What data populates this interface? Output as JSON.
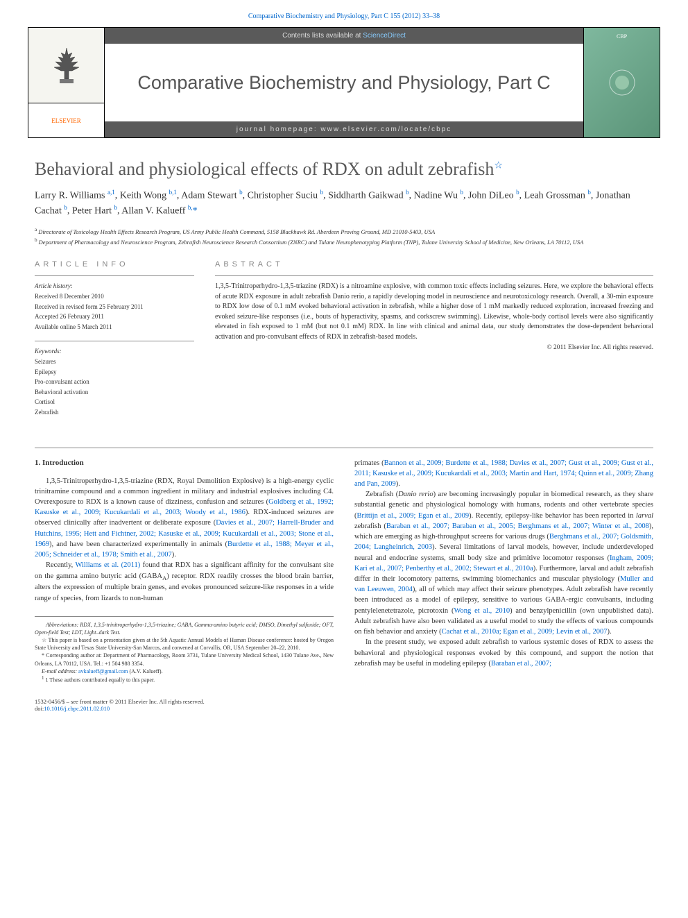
{
  "top_link": {
    "journal": "Comparative Biochemistry and Physiology, Part C 155 (2012) 33–38"
  },
  "banner": {
    "contents_line_prefix": "Contents lists available at ",
    "contents_line_link": "ScienceDirect",
    "journal_title": "Comparative Biochemistry and Physiology, Part C",
    "homepage_prefix": "journal homepage: ",
    "homepage_url": "www.elsevier.com/locate/cbpc",
    "publisher": "ELSEVIER",
    "cover_abbr": "CBP"
  },
  "article": {
    "title": "Behavioral and physiological effects of RDX on adult zebrafish",
    "title_star": "☆",
    "authors_html": "Larry R. Williams <sup>a,1</sup>, Keith Wong <sup>b,1</sup>, Adam Stewart <sup>b</sup>, Christopher Suciu <sup>b</sup>, Siddharth Gaikwad <sup>b</sup>, Nadine Wu <sup>b</sup>, John DiLeo <sup>b</sup>, Leah Grossman <sup>b</sup>, Jonathan Cachat <sup>b</sup>, Peter Hart <sup>b</sup>, Allan V. Kalueff <sup>b,</sup><span class='ast'>*</span>",
    "affiliations": {
      "a": "Directorate of Toxicology Health Effects Research Program, US Army Public Health Command, 5158 Blackhawk Rd. Aberdeen Proving Ground, MD 21010-5403, USA",
      "b": "Department of Pharmacology and Neuroscience Program, Zebrafish Neuroscience Research Consortium (ZNRC) and Tulane Neurophenotyping Platform (TNP), Tulane University School of Medicine, New Orleans, LA 70112, USA"
    }
  },
  "info": {
    "heading_article": "article info",
    "history_label": "Article history:",
    "history_lines": [
      "Received 8 December 2010",
      "Received in revised form 25 February 2011",
      "Accepted 26 February 2011",
      "Available online 5 March 2011"
    ],
    "keywords_label": "Keywords:",
    "keywords": [
      "Seizures",
      "Epilepsy",
      "Pro-convulsant action",
      "Behavioral activation",
      "Cortisol",
      "Zebrafish"
    ]
  },
  "abstract": {
    "heading": "abstract",
    "body": "1,3,5-Trinitroperhydro-1,3,5-triazine (RDX) is a nitroamine explosive, with common toxic effects including seizures. Here, we explore the behavioral effects of acute RDX exposure in adult zebrafish Danio rerio, a rapidly developing model in neuroscience and neurotoxicology research. Overall, a 30-min exposure to RDX low dose of 0.1 mM evoked behavioral activation in zebrafish, while a higher dose of 1 mM markedly reduced exploration, increased freezing and evoked seizure-like responses (i.e., bouts of hyperactivity, spasms, and corkscrew swimming). Likewise, whole-body cortisol levels were also significantly elevated in fish exposed to 1 mM (but not 0.1 mM) RDX. In line with clinical and animal data, our study demonstrates the dose-dependent behavioral activation and pro-convulsant effects of RDX in zebrafish-based models.",
    "copyright": "© 2011 Elsevier Inc. All rights reserved."
  },
  "body": {
    "intro_heading": "1. Introduction",
    "col1": [
      "1,3,5-Trinitroperhydro-1,3,5-triazine (RDX, Royal Demolition Explosive) is a high-energy cyclic trinitramine compound and a common ingredient in military and industrial explosives including C4. Overexposure to RDX is a known cause of dizziness, confusion and seizures (<span class='ref'>Goldberg et al., 1992; Kasuske et al., 2009; Kucukardali et al., 2003; Woody et al., 1986</span>). RDX-induced seizures are observed clinically after inadvertent or deliberate exposure (<span class='ref'>Davies et al., 2007; Harrell-Bruder and Hutchins, 1995; Hett and Fichtner, 2002; Kasuske et al., 2009; Kucukardali et al., 2003; Stone et al., 1969</span>), and have been characterized experimentally in animals (<span class='ref'>Burdette et al., 1988; Meyer et al., 2005; Schneider et al., 1978; Smith et al., 2007</span>).",
      "Recently, <span class='ref'>Williams et al. (2011)</span> found that RDX has a significant affinity for the convulsant site on the gamma amino butyric acid (GABA<sub>A</sub>) receptor. RDX readily crosses the blood brain barrier, alters the expression of multiple brain genes, and evokes pronounced seizure-like responses in a wide range of species, from lizards to non-human"
    ],
    "col2": [
      "primates (<span class='ref'>Bannon et al., 2009; Burdette et al., 1988; Davies et al., 2007; Gust et al., 2009; Gust et al., 2011; Kasuske et al., 2009; Kucukardali et al., 2003; Martin and Hart, 1974; Quinn et al., 2009; Zhang and Pan, 2009</span>).",
      "Zebrafish (<em>Danio rerio</em>) are becoming increasingly popular in biomedical research, as they share substantial genetic and physiological homology with humans, rodents and other vertebrate species (<span class='ref'>Brittijn et al., 2009; Egan et al., 2009</span>). Recently, epilepsy-like behavior has been reported in <em>larval</em> zebrafish (<span class='ref'>Baraban et al., 2007; Baraban et al., 2005; Berghmans et al., 2007; Winter et al., 2008</span>), which are emerging as high-throughput screens for various drugs (<span class='ref'>Berghmans et al., 2007; Goldsmith, 2004; Langheinrich, 2003</span>). Several limitations of larval models, however, include underdeveloped neural and endocrine systems, small body size and primitive locomotor responses (<span class='ref'>Ingham, 2009; Kari et al., 2007; Penberthy et al., 2002; Stewart et al., 2010a</span>). Furthermore, larval and adult zebrafish differ in their locomotory patterns, swimming biomechanics and muscular physiology (<span class='ref'>Muller and van Leeuwen, 2004</span>), all of which may affect their seizure phenotypes. Adult zebrafish have recently been introduced as a model of epilepsy, sensitive to various GABA-ergic convulsants, including pentylelenetetrazole, picrotoxin (<span class='ref'>Wong et al., 2010</span>) and benzylpenicillin (own unpublished data). Adult zebrafish have also been validated as a useful model to study the effects of various compounds on fish behavior and anxiety (<span class='ref'>Cachat et al., 2010a; Egan et al., 2009; Levin et al., 2007</span>).",
      "In the present study, we exposed adult zebrafish to various systemic doses of RDX to assess the behavioral and physiological responses evoked by this compound, and support the notion that zebrafish may be useful in modeling epilepsy (<span class='ref'>Baraban et al., 2007;</span>"
    ]
  },
  "footnotes": {
    "abbrev": "Abbreviations: RDX, 1,3,5-trinitroperhydro-1,3,5-triazine; GABA, Gamma-amino butyric acid; DMSO, Dimethyl sulfoxide; OFT, Open-field Test; LDT, Light–dark Test.",
    "star": "☆ This paper is based on a presentation given at the 5th Aquatic Annual Models of Human Disease conference: hosted by Oregon State University and Texas State University-San Marcos, and convened at Corvallis, OR, USA September 20–22, 2010.",
    "corr": "* Corresponding author at: Department of Pharmacology, Room 3731, Tulane University Medical School, 1430 Tulane Ave., New Orleans, LA 70112, USA. Tel.: +1 504 988 3354.",
    "email_label": "E-mail address: ",
    "email": "avkalueff@gmail.com",
    "email_suffix": " (A.V. Kalueff).",
    "equal": "1 These authors contributed equally to this paper."
  },
  "footer": {
    "line1": "1532-0456/$ – see front matter © 2011 Elsevier Inc. All rights reserved.",
    "doi_prefix": "doi:",
    "doi": "10.1016/j.cbpc.2011.02.010"
  },
  "colors": {
    "link": "#0066cc",
    "banner_bg": "#5a5a5a",
    "heading_gray": "#888888",
    "orange": "#ff6600"
  }
}
